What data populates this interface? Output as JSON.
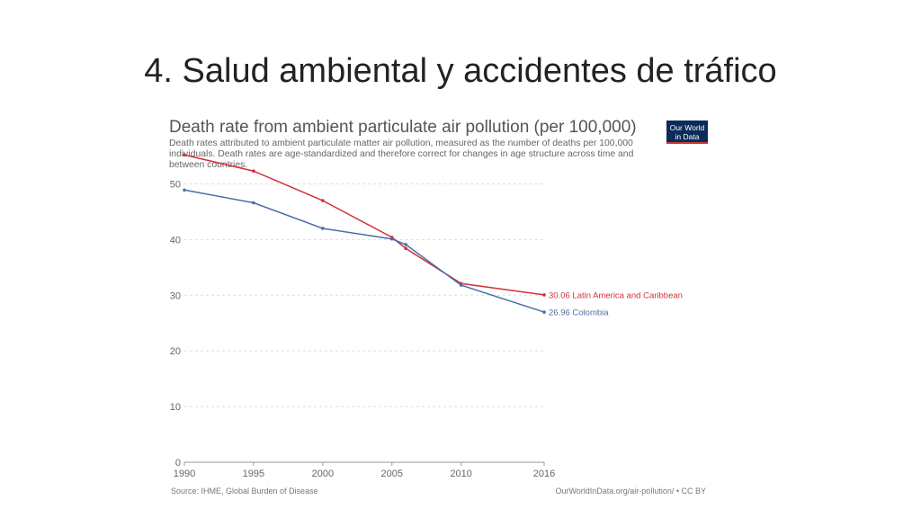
{
  "slide": {
    "title": "4. Salud ambiental y accidentes de tráfico"
  },
  "logo": {
    "line1": "Our World",
    "line2": "in Data",
    "bg_color": "#0b2c5a",
    "accent_color": "#c73a3a"
  },
  "footer": {
    "source": "Source: IHME, Global Burden of Disease",
    "url": "OurWorldInData.org/air-pollution/ • CC BY"
  },
  "chart_data": {
    "type": "line",
    "title": "Death rate from ambient particulate air pollution (per 100,000)",
    "subtitle": "Death rates attributed to ambient particulate matter air pollution, measured as the number of deaths per 100,000 individuals. Death rates are age-standardized and therefore correct for changes in age structure across time and between countries.",
    "xlabel": "",
    "ylabel": "",
    "xlim": [
      1990,
      2016
    ],
    "ylim": [
      0,
      55
    ],
    "x_ticks": [
      1990,
      1995,
      2000,
      2005,
      2010,
      2016
    ],
    "y_ticks": [
      0,
      10,
      20,
      30,
      40,
      50
    ],
    "grid": true,
    "legend": "line-end labels",
    "series": [
      {
        "name": "Latin America and Caribbean",
        "end_label": "30.06 Latin America and Caribbean",
        "color": "#d0313a",
        "x": [
          1990,
          1995,
          2000,
          2005,
          2006,
          2010,
          2016
        ],
        "y": [
          55.2,
          52.3,
          47.0,
          40.4,
          38.4,
          32.1,
          30.06
        ]
      },
      {
        "name": "Colombia",
        "end_label": "26.96 Colombia",
        "color": "#4a6fa5",
        "x": [
          1990,
          1995,
          2000,
          2005,
          2006,
          2010,
          2016
        ],
        "y": [
          48.9,
          46.6,
          42.0,
          40.1,
          39.1,
          31.8,
          26.96
        ]
      }
    ]
  }
}
